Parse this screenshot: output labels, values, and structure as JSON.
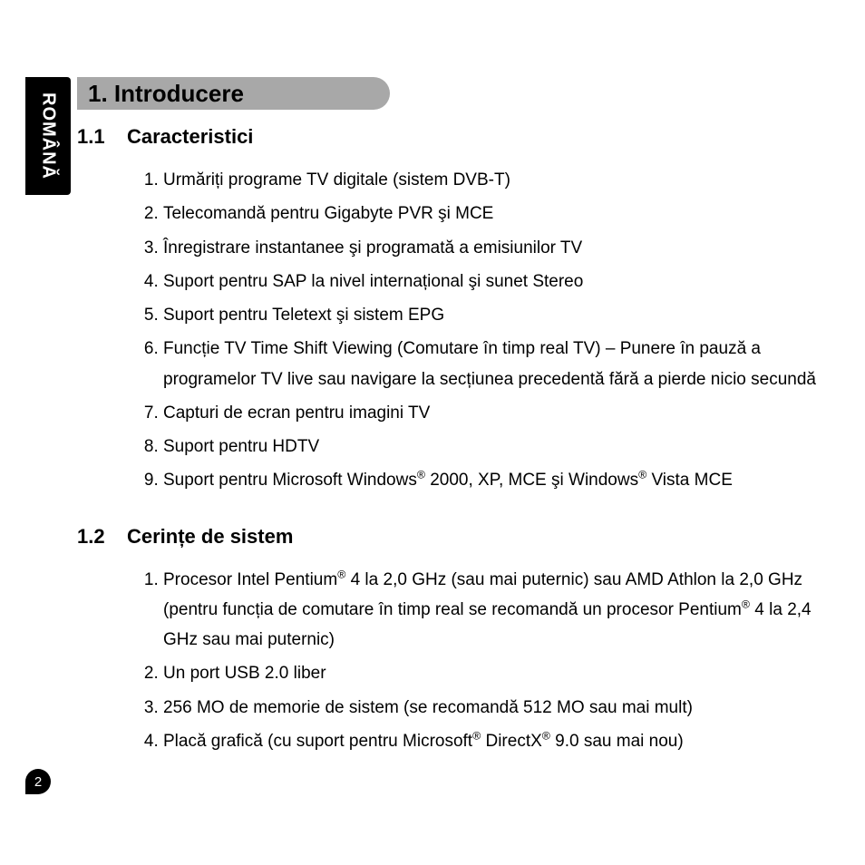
{
  "sideTab": {
    "label": "ROMÂNĂ"
  },
  "heading": {
    "text": "1. Introducere"
  },
  "section1": {
    "num": "1.1",
    "title": "Caracteristici",
    "items": [
      "Urmăriți programe TV digitale (sistem DVB-T)",
      "Telecomandă pentru Gigabyte PVR şi MCE",
      "Înregistrare instantanee şi programată a emisiunilor TV",
      "Suport pentru SAP la nivel internațional şi sunet Stereo",
      "Suport pentru Teletext şi sistem EPG",
      "Funcție TV Time Shift Viewing (Comutare în timp real TV) – Punere în pauză a programelor TV live sau navigare la secțiunea precedentă fără a pierde nicio secundă",
      "Capturi de ecran pentru imagini TV",
      "Suport pentru HDTV",
      "Suport pentru Microsoft Windows® 2000, XP, MCE şi Windows® Vista MCE"
    ]
  },
  "section2": {
    "num": "1.2",
    "title": "Cerințe de sistem",
    "items": [
      "Procesor Intel Pentium® 4 la 2,0 GHz (sau mai puternic) sau AMD Athlon la 2,0 GHz (pentru funcția de comutare în timp real se recomandă un procesor Pentium® 4 la 2,4 GHz sau mai puternic)",
      "Un port USB 2.0 liber",
      "256 MO de memorie de sistem (se recomandă 512 MO sau mai mult)",
      "Placă grafică (cu suport pentru Microsoft® DirectX® 9.0 sau mai nou)"
    ]
  },
  "pageNumber": "2",
  "style": {
    "page_bg": "#ffffff",
    "sidebar_bg": "#000000",
    "sidebar_text_color": "#ffffff",
    "heading_bg": "#a8a8a8",
    "heading_text_color": "#000000",
    "body_text_color": "#000000",
    "badge_bg": "#000000",
    "badge_text_color": "#ffffff",
    "heading_fontsize": 26,
    "subhead_fontsize": 22,
    "body_fontsize": 19
  }
}
